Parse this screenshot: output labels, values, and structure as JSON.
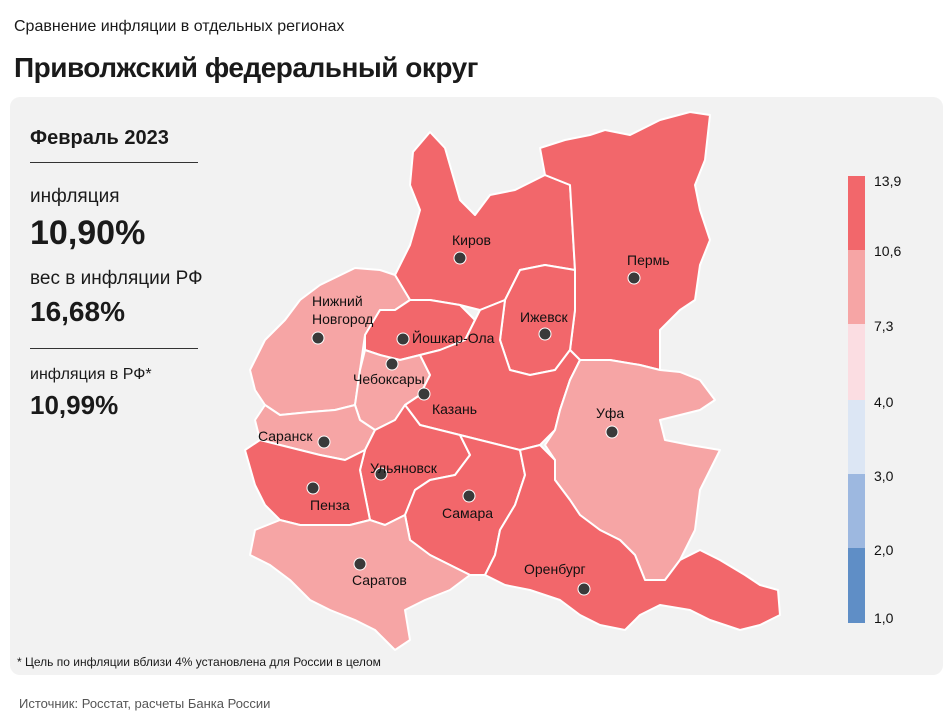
{
  "header": {
    "subtitle": "Сравнение инфляции в отдельных регионах",
    "title": "Приволжский федеральный округ"
  },
  "info": {
    "period": "Февраль 2023",
    "inflation_label": "инфляция",
    "inflation_value": "10,90%",
    "weight_label": "вес в инфляции РФ",
    "weight_value": "16,68%",
    "rf_label": "инфляция в РФ*",
    "rf_value": "10,99%"
  },
  "footnote": "* Цель по инфляции вблизи 4% установлена для России в целом",
  "source": "Источник: Росстат, расчеты Банка России",
  "legend": {
    "ticks": [
      "13,9",
      "10,6",
      "7,3",
      "4,0",
      "3,0",
      "2,0",
      "1,0"
    ],
    "colors": [
      "#f2676b",
      "#f6a5a5",
      "#fbdde2",
      "#dce6f4",
      "#9db8e0",
      "#5f8ec6"
    ]
  },
  "palette": {
    "high": "#f2676b",
    "mid": "#f6a5a5",
    "border": "#ffffff",
    "dot": "#3a3a3a"
  },
  "chart_data": {
    "type": "map",
    "scale": [
      1.0,
      2.0,
      3.0,
      4.0,
      7.3,
      10.6,
      13.9
    ],
    "regions": [
      {
        "name": "Киров",
        "class": "10,6–13,9"
      },
      {
        "name": "Пермь",
        "class": "10,6–13,9"
      },
      {
        "name": "Нижний Новгород",
        "class": "7,3–10,6"
      },
      {
        "name": "Йошкар-Ола",
        "class": "10,6–13,9"
      },
      {
        "name": "Ижевск",
        "class": "10,6–13,9"
      },
      {
        "name": "Чебоксары",
        "class": "7,3–10,6"
      },
      {
        "name": "Казань",
        "class": "10,6–13,9"
      },
      {
        "name": "Уфа",
        "class": "7,3–10,6"
      },
      {
        "name": "Саранск",
        "class": "7,3–10,6"
      },
      {
        "name": "Ульяновск",
        "class": "10,6–13,9"
      },
      {
        "name": "Пенза",
        "class": "10,6–13,9"
      },
      {
        "name": "Самара",
        "class": "10,6–13,9"
      },
      {
        "name": "Саратов",
        "class": "7,3–10,6"
      },
      {
        "name": "Оренбург",
        "class": "10,6–13,9"
      }
    ],
    "labels": {
      "kirov": "Киров",
      "perm": "Пермь",
      "nn1": "Нижний",
      "nn2": "Новгород",
      "yoshkar": "Йошкар-Ола",
      "izhevsk": "Ижевск",
      "cheb": "Чебоксары",
      "kazan": "Казань",
      "ufa": "Уфа",
      "saransk": "Саранск",
      "ulyan": "Ульяновск",
      "penza": "Пенза",
      "samara": "Самара",
      "saratov": "Саратов",
      "orenburg": "Оренбург"
    }
  }
}
